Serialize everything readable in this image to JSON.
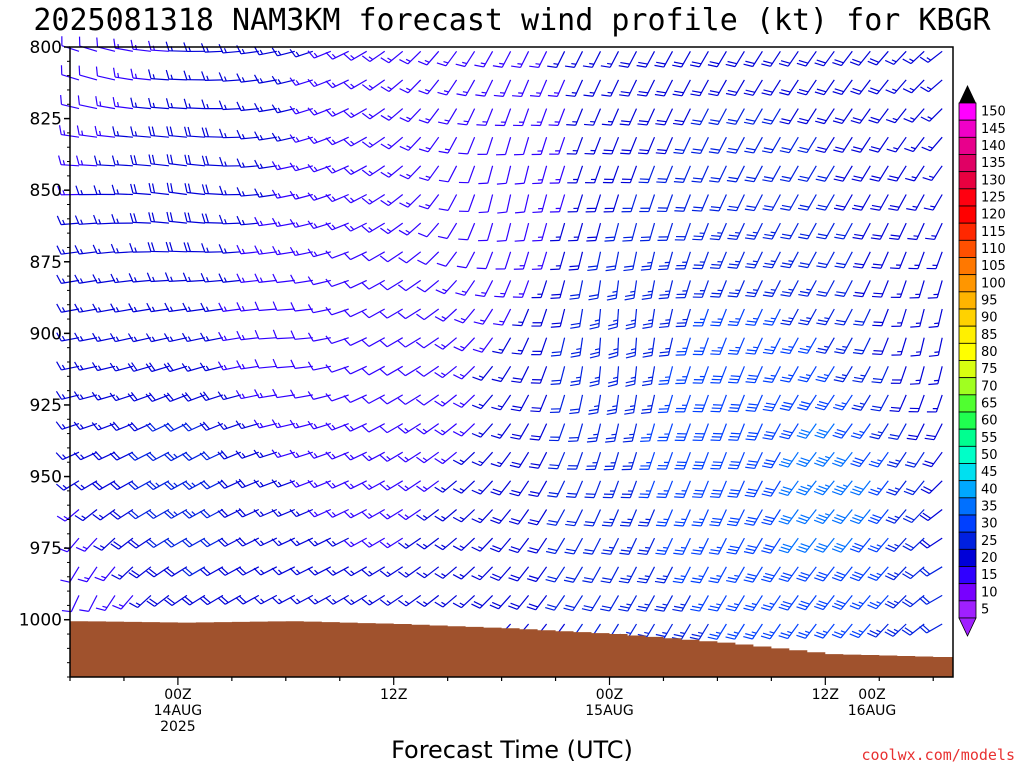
{
  "chart_data": {
    "type": "wind-profile",
    "title": "2025081318 NAM3KM forecast wind profile (kt) for KBGR",
    "xlabel": "Forecast Time (UTC)",
    "ylabel": "",
    "credit": "coolwx.com/models",
    "y_axis": {
      "ticks": [
        800,
        825,
        850,
        875,
        900,
        925,
        950,
        975,
        1000
      ],
      "range_mb": [
        800,
        1020
      ],
      "inverted": true
    },
    "x_axis": {
      "start_hour": 18,
      "end_hour": 67,
      "labels": [
        {
          "hour": 24,
          "lines": [
            "00Z",
            "14AUG",
            "2025"
          ]
        },
        {
          "hour": 36,
          "lines": [
            "12Z"
          ]
        },
        {
          "hour": 48,
          "lines": [
            "00Z",
            "15AUG"
          ]
        },
        {
          "hour": 60,
          "lines": [
            "12Z"
          ]
        },
        {
          "hour": 72,
          "lines": [
            "00Z",
            "16AUG"
          ]
        }
      ]
    },
    "barb_levels_mb": [
      800,
      810,
      820,
      830,
      840,
      850,
      860,
      870,
      880,
      890,
      900,
      910,
      920,
      930,
      940,
      950,
      960,
      970,
      980,
      990,
      1000
    ],
    "barb_hours": [
      18,
      19,
      20,
      21,
      22,
      23,
      24,
      25,
      26,
      27,
      28,
      29,
      30,
      31,
      32,
      33,
      34,
      35,
      36,
      37,
      38,
      39,
      40,
      41,
      42,
      43,
      44,
      45,
      46,
      47,
      48,
      49,
      50,
      51,
      52,
      53,
      54,
      55,
      56,
      57,
      58,
      59,
      60,
      61,
      62,
      63,
      64,
      65,
      66,
      67,
      68,
      69,
      70,
      71,
      72,
      73,
      74,
      75,
      76,
      77
    ],
    "terrain": {
      "color": "#a0522d",
      "surface_pressure_by_hour": [
        {
          "hour": 18,
          "mb": 1000.5
        },
        {
          "hour": 24,
          "mb": 1001
        },
        {
          "hour": 30,
          "mb": 1000.5
        },
        {
          "hour": 36,
          "mb": 1001.5
        },
        {
          "hour": 42,
          "mb": 1003
        },
        {
          "hour": 48,
          "mb": 1005
        },
        {
          "hour": 54,
          "mb": 1008
        },
        {
          "hour": 60,
          "mb": 1012
        },
        {
          "hour": 66,
          "mb": 1013
        },
        {
          "hour": 72,
          "mb": 1013
        }
      ]
    },
    "wind_samples": [
      {
        "hour": 18,
        "mb": 800,
        "dir": 290,
        "kt": 10
      },
      {
        "hour": 18,
        "mb": 900,
        "dir": 260,
        "kt": 15
      },
      {
        "hour": 18,
        "mb": 1000,
        "dir": 200,
        "kt": 10
      },
      {
        "hour": 24,
        "mb": 850,
        "dir": 280,
        "kt": 20
      },
      {
        "hour": 24,
        "mb": 950,
        "dir": 240,
        "kt": 25
      },
      {
        "hour": 30,
        "mb": 900,
        "dir": 270,
        "kt": 10
      },
      {
        "hour": 36,
        "mb": 900,
        "dir": 240,
        "kt": 10
      },
      {
        "hour": 42,
        "mb": 850,
        "dir": 190,
        "kt": 10
      },
      {
        "hour": 48,
        "mb": 900,
        "dir": 180,
        "kt": 25
      },
      {
        "hour": 54,
        "mb": 930,
        "dir": 200,
        "kt": 30
      },
      {
        "hour": 60,
        "mb": 950,
        "dir": 220,
        "kt": 35
      },
      {
        "hour": 66,
        "mb": 900,
        "dir": 190,
        "kt": 15
      },
      {
        "hour": 72,
        "mb": 950,
        "dir": 340,
        "kt": 10
      },
      {
        "hour": 76,
        "mb": 850,
        "dir": 350,
        "kt": 5
      }
    ],
    "colorbar": {
      "labels": [
        150,
        145,
        140,
        135,
        130,
        125,
        120,
        115,
        110,
        105,
        100,
        95,
        90,
        85,
        80,
        75,
        70,
        65,
        60,
        55,
        50,
        45,
        40,
        35,
        30,
        25,
        20,
        15,
        10,
        5
      ],
      "colors": [
        "#ff00ff",
        "#f000c8",
        "#e8008c",
        "#e00064",
        "#e80040",
        "#ff0010",
        "#ff0000",
        "#ff2800",
        "#ff5000",
        "#ff7800",
        "#ff9600",
        "#ffb400",
        "#ffd200",
        "#fff000",
        "#ffff00",
        "#d8ff10",
        "#a0ff20",
        "#50ff30",
        "#20ff50",
        "#00ff90",
        "#00ffc8",
        "#00e0f0",
        "#00a8ff",
        "#0070ff",
        "#0040ff",
        "#0020e0",
        "#0000d8",
        "#3000ff",
        "#7800ff",
        "#a020ff"
      ]
    }
  }
}
